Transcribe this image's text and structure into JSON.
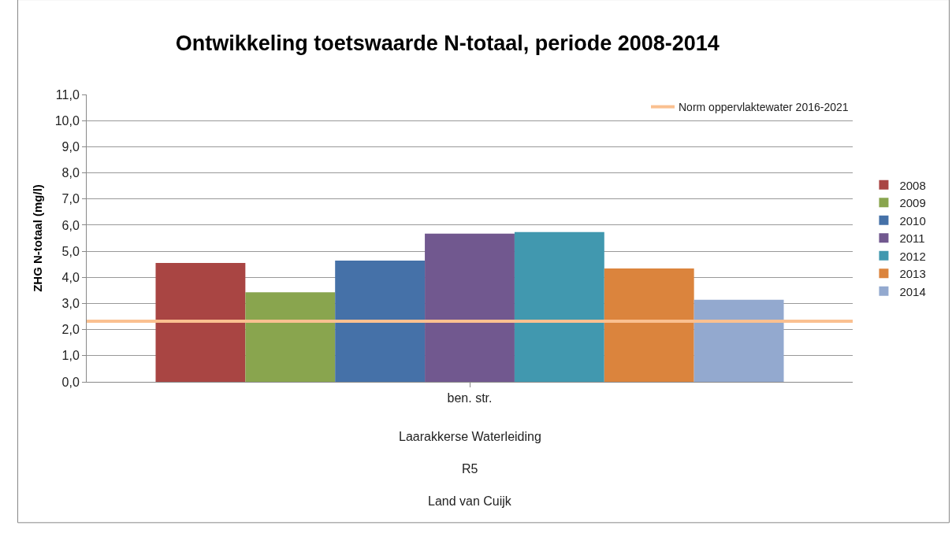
{
  "chart_data": {
    "type": "bar",
    "title": "Ontwikkeling toetswaarde N-totaal, periode 2008-2014",
    "ylabel": "ZHG N-totaal (mg/l)",
    "categories": [
      "ben. str."
    ],
    "series": [
      {
        "name": "2008",
        "color": "#a94543",
        "values": [
          4.55
        ]
      },
      {
        "name": "2009",
        "color": "#89a54e",
        "values": [
          3.43
        ]
      },
      {
        "name": "2010",
        "color": "#4571a8",
        "values": [
          4.64
        ]
      },
      {
        "name": "2011",
        "color": "#71588f",
        "values": [
          5.67
        ]
      },
      {
        "name": "2012",
        "color": "#4198af",
        "values": [
          5.73
        ]
      },
      {
        "name": "2013",
        "color": "#db843d",
        "values": [
          4.34
        ]
      },
      {
        "name": "2014",
        "color": "#93a9cf",
        "values": [
          3.14
        ]
      }
    ],
    "ref_lines": [
      {
        "axis": "y",
        "value": 2.32,
        "label": "Norm oppervlaktewater 2016-2021",
        "color": "#fac090"
      }
    ],
    "annotations": [
      "Laarakkerse Waterleiding",
      "R5",
      "Land van Cuijk"
    ],
    "ylim": [
      0,
      11
    ],
    "yticks": [
      {
        "value": 0,
        "label": "0,0"
      },
      {
        "value": 1,
        "label": "1,0"
      },
      {
        "value": 2,
        "label": "2,0"
      },
      {
        "value": 3,
        "label": "3,0"
      },
      {
        "value": 4,
        "label": "4,0"
      },
      {
        "value": 5,
        "label": "5,0"
      },
      {
        "value": 6,
        "label": "6,0"
      },
      {
        "value": 7,
        "label": "7,0"
      },
      {
        "value": 8,
        "label": "8,0"
      },
      {
        "value": 9,
        "label": "9,0"
      },
      {
        "value": 10,
        "label": "10,0"
      },
      {
        "value": 11,
        "label": "11,0"
      }
    ],
    "grid": "y",
    "legend": "right"
  }
}
